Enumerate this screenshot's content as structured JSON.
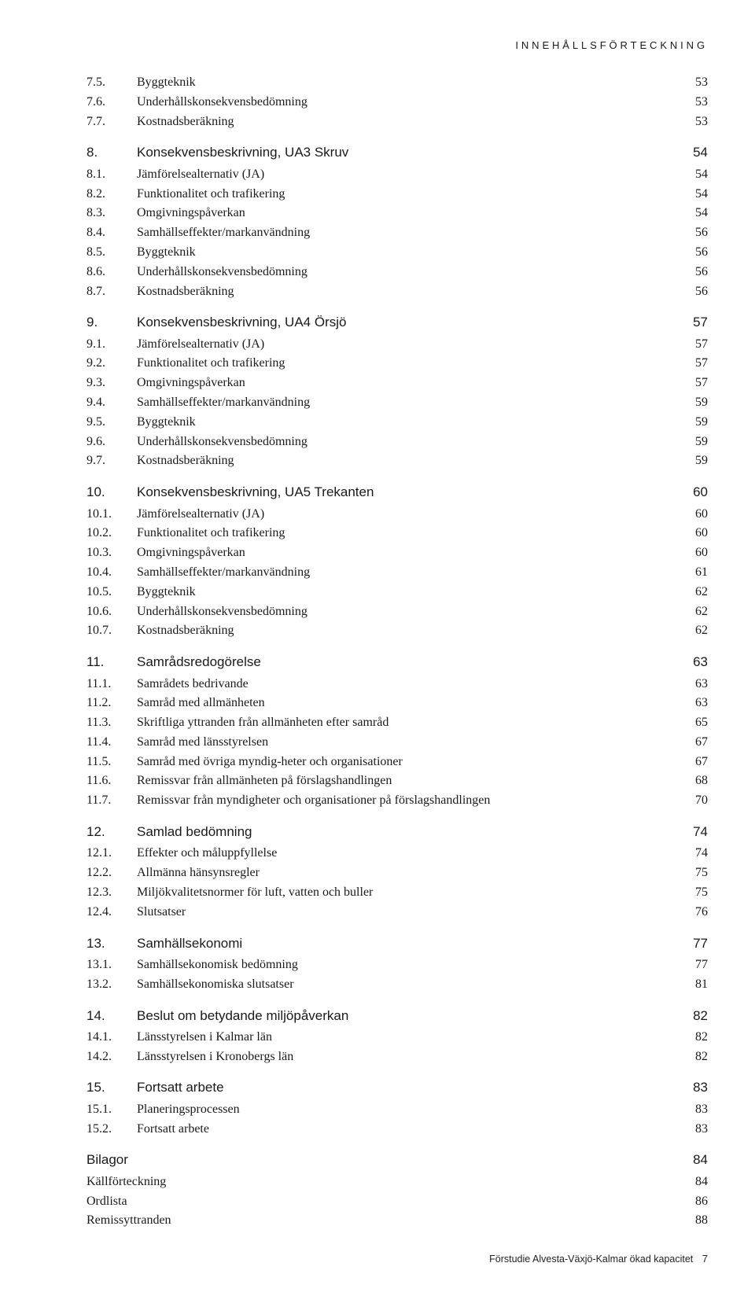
{
  "running_head": "INNEHÅLLSFÖRTECKNING",
  "footer": {
    "text": "Förstudie Alvesta-Växjö-Kalmar ökad kapacitet",
    "page": "7"
  },
  "toc": [
    {
      "num": "7.5.",
      "label": "Byggteknik",
      "page": "53",
      "type": "sub"
    },
    {
      "num": "7.6.",
      "label": "Underhållskonsekvensbedömning",
      "page": "53",
      "type": "sub"
    },
    {
      "num": "7.7.",
      "label": "Kostnadsberäkning",
      "page": "53",
      "type": "sub"
    },
    {
      "num": "8.",
      "label": "Konsekvensbeskrivning, UA3 Skruv",
      "page": "54",
      "type": "section"
    },
    {
      "num": "8.1.",
      "label": "Jämförelsealternativ (JA)",
      "page": "54",
      "type": "sub"
    },
    {
      "num": "8.2.",
      "label": "Funktionalitet och trafikering",
      "page": "54",
      "type": "sub"
    },
    {
      "num": "8.3.",
      "label": "Omgivningspåverkan",
      "page": "54",
      "type": "sub"
    },
    {
      "num": "8.4.",
      "label": "Samhällseffekter/markanvändning",
      "page": "56",
      "type": "sub"
    },
    {
      "num": "8.5.",
      "label": "Byggteknik",
      "page": "56",
      "type": "sub"
    },
    {
      "num": "8.6.",
      "label": "Underhållskonsekvensbedömning",
      "page": "56",
      "type": "sub"
    },
    {
      "num": "8.7.",
      "label": "Kostnadsberäkning",
      "page": "56",
      "type": "sub"
    },
    {
      "num": "9.",
      "label": "Konsekvensbeskrivning, UA4 Örsjö",
      "page": "57",
      "type": "section"
    },
    {
      "num": "9.1.",
      "label": "Jämförelsealternativ (JA)",
      "page": "57",
      "type": "sub"
    },
    {
      "num": "9.2.",
      "label": "Funktionalitet och trafikering",
      "page": "57",
      "type": "sub"
    },
    {
      "num": "9.3.",
      "label": "Omgivningspåverkan",
      "page": "57",
      "type": "sub"
    },
    {
      "num": "9.4.",
      "label": "Samhällseffekter/markanvändning",
      "page": "59",
      "type": "sub"
    },
    {
      "num": "9.5.",
      "label": "Byggteknik",
      "page": "59",
      "type": "sub"
    },
    {
      "num": "9.6.",
      "label": "Underhållskonsekvensbedömning",
      "page": "59",
      "type": "sub"
    },
    {
      "num": "9.7.",
      "label": "Kostnadsberäkning",
      "page": "59",
      "type": "sub"
    },
    {
      "num": "10.",
      "label": "Konsekvensbeskrivning, UA5 Trekanten",
      "page": "60",
      "type": "section"
    },
    {
      "num": "10.1.",
      "label": "Jämförelsealternativ (JA)",
      "page": "60",
      "type": "sub"
    },
    {
      "num": "10.2.",
      "label": "Funktionalitet och trafikering",
      "page": "60",
      "type": "sub"
    },
    {
      "num": "10.3.",
      "label": "Omgivningspåverkan",
      "page": "60",
      "type": "sub"
    },
    {
      "num": "10.4.",
      "label": "Samhällseffekter/markanvändning",
      "page": "61",
      "type": "sub"
    },
    {
      "num": "10.5.",
      "label": "Byggteknik",
      "page": "62",
      "type": "sub"
    },
    {
      "num": "10.6.",
      "label": "Underhållskonsekvensbedömning",
      "page": "62",
      "type": "sub"
    },
    {
      "num": "10.7.",
      "label": "Kostnadsberäkning",
      "page": "62",
      "type": "sub"
    },
    {
      "num": "11.",
      "label": "Samrådsredogörelse",
      "page": "63",
      "type": "section"
    },
    {
      "num": "11.1.",
      "label": "Samrådets bedrivande",
      "page": "63",
      "type": "sub"
    },
    {
      "num": "11.2.",
      "label": "Samråd med allmänheten",
      "page": "63",
      "type": "sub"
    },
    {
      "num": "11.3.",
      "label": "Skriftliga yttranden från allmänheten efter samråd",
      "page": "65",
      "type": "sub"
    },
    {
      "num": "11.4.",
      "label": "Samråd med länsstyrelsen",
      "page": "67",
      "type": "sub"
    },
    {
      "num": "11.5.",
      "label": "Samråd med övriga myndig-heter och organisationer",
      "page": "67",
      "type": "sub"
    },
    {
      "num": "11.6.",
      "label": "Remissvar från allmänheten på förslagshandlingen",
      "page": "68",
      "type": "sub"
    },
    {
      "num": "11.7.",
      "label": "Remissvar från myndigheter och organisationer på förslagshandlingen",
      "page": "70",
      "type": "sub"
    },
    {
      "num": "12.",
      "label": "Samlad bedömning",
      "page": "74",
      "type": "section"
    },
    {
      "num": "12.1.",
      "label": "Effekter och måluppfyllelse",
      "page": "74",
      "type": "sub"
    },
    {
      "num": "12.2.",
      "label": "Allmänna hänsynsregler",
      "page": "75",
      "type": "sub"
    },
    {
      "num": "12.3.",
      "label": "Miljökvalitetsnormer för luft, vatten och buller",
      "page": "75",
      "type": "sub"
    },
    {
      "num": "12.4.",
      "label": "Slutsatser",
      "page": "76",
      "type": "sub"
    },
    {
      "num": "13.",
      "label": "Samhällsekonomi",
      "page": "77",
      "type": "section"
    },
    {
      "num": "13.1.",
      "label": "Samhällsekonomisk bedömning",
      "page": "77",
      "type": "sub"
    },
    {
      "num": "13.2.",
      "label": "Samhällsekonomiska slutsatser",
      "page": "81",
      "type": "sub"
    },
    {
      "num": "14.",
      "label": "Beslut om betydande miljöpåverkan",
      "page": "82",
      "type": "section"
    },
    {
      "num": "14.1.",
      "label": "Länsstyrelsen i Kalmar län",
      "page": "82",
      "type": "sub"
    },
    {
      "num": "14.2.",
      "label": "Länsstyrelsen i Kronobergs län",
      "page": "82",
      "type": "sub"
    },
    {
      "num": "15.",
      "label": "Fortsatt arbete",
      "page": "83",
      "type": "section"
    },
    {
      "num": "15.1.",
      "label": "Planeringsprocessen",
      "page": "83",
      "type": "sub"
    },
    {
      "num": "15.2.",
      "label": "Fortsatt arbete",
      "page": "83",
      "type": "sub"
    },
    {
      "num": "",
      "label": "Bilagor",
      "page": "84",
      "type": "section",
      "appendix": true
    },
    {
      "num": "",
      "label": "Källförteckning",
      "page": "84",
      "type": "sub",
      "appendix": true
    },
    {
      "num": "",
      "label": "Ordlista",
      "page": "86",
      "type": "sub",
      "appendix": true
    },
    {
      "num": "",
      "label": "Remissyttranden",
      "page": "88",
      "type": "sub",
      "appendix": true
    }
  ]
}
